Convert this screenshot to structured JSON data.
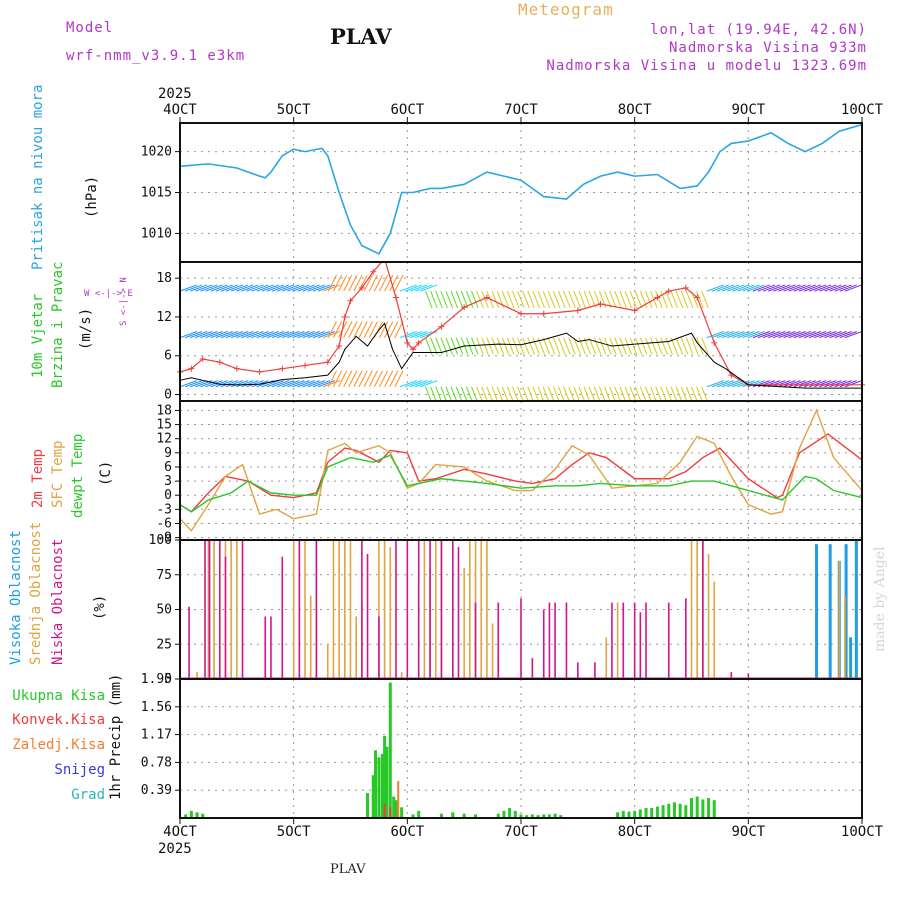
{
  "header": {
    "model_label": "Model",
    "model_name": "wrf-nmm_v3.9.1  e3km",
    "station": "PLAV",
    "meteogram": "Meteogram",
    "lonlat": "lon,lat (19.94E, 42.6N)",
    "altitude": "Nadmorska Visina 933m",
    "model_altitude": "Nadmorska Visina u modelu 1323.69m"
  },
  "time_axis": {
    "year": "2025",
    "ticks": [
      "4OCT",
      "5OCT",
      "6OCT",
      "7OCT",
      "8OCT",
      "9OCT",
      "10OCT"
    ]
  },
  "panel_labels": {
    "pressure": {
      "name": "Pritisak na nivou mora",
      "unit": "(hPa)"
    },
    "wind": {
      "name1": "10m Vjetar",
      "name2": "Brzina i Pravac",
      "unit": "(m/s)",
      "compass": "W <-|-> E",
      "compass_v": "S <-|-> N"
    },
    "temp": {
      "name1": "2m Temp",
      "name2": "SFC Temp",
      "name3": "dewpt Temp",
      "unit": "(C)"
    },
    "cloud": {
      "name1": "Visoka Oblacnost",
      "name2": "Srednja Oblacnost",
      "name3": "Niska Oblacnost",
      "unit": "(%)"
    },
    "precip": {
      "unit": "1hr Precip (mm)",
      "legend": [
        "Ukupna Kisa",
        "Konvek.Kisa",
        "Zaledj.Kisa",
        "Snijeg",
        "Grad"
      ]
    }
  },
  "footer": {
    "station": "PLAV",
    "watermark": "made by Angel"
  },
  "colors": {
    "pressure": "#2aa5e6",
    "temp2m": "#f03c3c",
    "sfc": "#e0a440",
    "dewpt": "#28c828",
    "high": "#1f9fe0",
    "mid": "#e0a440",
    "low": "#d0158c",
    "rain": "#28c828",
    "conv": "#f03c3c",
    "frz": "#f08030",
    "snow": "#3838e8",
    "hail": "#28b8b8",
    "windline": "#000000",
    "gust": "#f03c3c"
  },
  "chart_data": [
    {
      "type": "line",
      "title": "Pritisak na nivou mora",
      "ylabel": "(hPa)",
      "yticks": [
        1010,
        1015,
        1020
      ],
      "ylim": [
        1006.5,
        1023.5
      ],
      "x_days": [
        0,
        0.25,
        0.5,
        0.7,
        0.75,
        0.8,
        0.9,
        1.0,
        1.1,
        1.25,
        1.3,
        1.4,
        1.5,
        1.6,
        1.75,
        1.85,
        1.95,
        2.05,
        2.2,
        2.3,
        2.5,
        2.7,
        2.85,
        3.0,
        3.2,
        3.4,
        3.55,
        3.7,
        3.85,
        4.0,
        4.2,
        4.4,
        4.55,
        4.65,
        4.75,
        4.85,
        5.0,
        5.2,
        5.35,
        5.5,
        5.65,
        5.8,
        6.0
      ],
      "values": [
        1018.2,
        1018.5,
        1018,
        1017,
        1016.8,
        1017.5,
        1019.5,
        1020.3,
        1020,
        1020.4,
        1019.5,
        1015,
        1011,
        1008.5,
        1007.5,
        1010,
        1015,
        1015,
        1015.5,
        1015.5,
        1016,
        1017.5,
        1017,
        1016.5,
        1014.5,
        1014.2,
        1016,
        1017,
        1017.5,
        1017,
        1017.2,
        1015.5,
        1015.8,
        1017.5,
        1020,
        1021,
        1021.3,
        1022.3,
        1021,
        1020,
        1021,
        1022.5,
        1023.3
      ]
    },
    {
      "type": "line",
      "title": "10m Vjetar Brzina i Pravac",
      "ylabel": "(m/s)",
      "yticks": [
        0,
        6,
        12,
        18
      ],
      "ylim": [
        -1,
        20.5
      ],
      "series": [
        {
          "name": "wind speed",
          "x_days": [
            0,
            0.1,
            0.2,
            0.35,
            0.5,
            0.7,
            0.9,
            1.1,
            1.3,
            1.4,
            1.45,
            1.5,
            1.55,
            1.65,
            1.75,
            1.8,
            1.87,
            1.95,
            2.05,
            2.3,
            2.5,
            2.8,
            3.0,
            3.2,
            3.4,
            3.5,
            3.6,
            3.8,
            4.0,
            4.3,
            4.5,
            4.55,
            4.7,
            4.8,
            5.0,
            5.5,
            6.0
          ],
          "values": [
            2.2,
            2.6,
            2.2,
            1.6,
            1.5,
            1.6,
            2.3,
            2.6,
            3.0,
            5.0,
            7.0,
            8.0,
            9.0,
            7.5,
            10.0,
            11.0,
            7.0,
            4.0,
            6.5,
            6.5,
            7.5,
            7.8,
            7.7,
            8.5,
            9.5,
            8.2,
            8.5,
            7.5,
            7.8,
            8.2,
            9.5,
            8.0,
            5.0,
            4.0,
            1.5,
            1.0,
            1.0
          ]
        },
        {
          "name": "gust",
          "x_days": [
            0,
            0.1,
            0.2,
            0.35,
            0.5,
            0.7,
            0.9,
            1.1,
            1.3,
            1.4,
            1.45,
            1.5,
            1.6,
            1.7,
            1.8,
            1.9,
            2.0,
            2.05,
            2.1,
            2.3,
            2.5,
            2.7,
            3.0,
            3.2,
            3.5,
            3.7,
            4.0,
            4.2,
            4.3,
            4.45,
            4.55,
            4.7,
            4.85,
            5.0,
            5.5,
            6.0
          ],
          "values": [
            3.5,
            4.0,
            5.5,
            5.0,
            4.0,
            3.5,
            4.0,
            4.5,
            5.0,
            7.5,
            12.0,
            14.5,
            16.5,
            19.0,
            21.0,
            15.0,
            8.0,
            7.0,
            8.0,
            10.5,
            13.5,
            15.0,
            12.5,
            12.5,
            13.0,
            14.0,
            13.0,
            15.0,
            16.0,
            16.5,
            15.0,
            8.0,
            3.0,
            1.5,
            1.5,
            1.5
          ]
        }
      ]
    },
    {
      "type": "line",
      "title": "Temperature",
      "ylabel": "(C)",
      "yticks": [
        -9,
        -6,
        -3,
        0,
        3,
        6,
        9,
        12,
        15,
        18
      ],
      "ylim": [
        -9.5,
        20
      ],
      "series": [
        {
          "name": "2m Temp",
          "x_days": [
            0,
            0.1,
            0.25,
            0.4,
            0.6,
            0.8,
            1.0,
            1.2,
            1.3,
            1.45,
            1.55,
            1.75,
            1.85,
            2.0,
            2.1,
            2.25,
            2.5,
            2.7,
            2.95,
            3.1,
            3.3,
            3.45,
            3.6,
            3.75,
            4.0,
            4.3,
            4.45,
            4.6,
            4.75,
            5.0,
            5.25,
            5.3,
            5.45,
            5.7,
            6.0
          ],
          "values": [
            -2.0,
            -3.5,
            0.5,
            4.0,
            3.0,
            0.0,
            -0.5,
            0.5,
            7.0,
            10.0,
            9.5,
            7.0,
            9.5,
            9.0,
            3.0,
            3.5,
            5.5,
            4.5,
            3.0,
            2.5,
            3.5,
            6.5,
            9.0,
            8.0,
            3.5,
            3.5,
            5.0,
            8.0,
            10.0,
            3.5,
            -0.5,
            0.0,
            9.0,
            13.0,
            7.5
          ]
        },
        {
          "name": "SFC Temp",
          "x_days": [
            0,
            0.1,
            0.25,
            0.4,
            0.55,
            0.7,
            0.85,
            1.0,
            1.2,
            1.3,
            1.45,
            1.55,
            1.75,
            1.85,
            2.0,
            2.1,
            2.25,
            2.5,
            2.7,
            2.95,
            3.1,
            3.3,
            3.45,
            3.6,
            3.8,
            4.0,
            4.2,
            4.4,
            4.55,
            4.7,
            4.85,
            5.0,
            5.2,
            5.3,
            5.45,
            5.6,
            5.75,
            6.0
          ],
          "values": [
            -5.0,
            -7.5,
            -2.0,
            4.0,
            6.5,
            -4.0,
            -3.0,
            -5.0,
            -4.0,
            9.5,
            11.0,
            9.0,
            10.5,
            9.0,
            1.5,
            2.5,
            6.5,
            6.0,
            3.0,
            1.0,
            1.0,
            5.5,
            10.5,
            8.5,
            1.5,
            2.0,
            2.5,
            7.0,
            12.5,
            11.0,
            4.0,
            -2.0,
            -4.0,
            -3.5,
            10.0,
            18.0,
            8.0,
            1.0
          ]
        },
        {
          "name": "dewpt Temp",
          "x_days": [
            0,
            0.1,
            0.25,
            0.45,
            0.6,
            0.8,
            1.0,
            1.2,
            1.3,
            1.5,
            1.7,
            1.85,
            2.0,
            2.1,
            2.3,
            2.5,
            2.7,
            3.0,
            3.3,
            3.5,
            3.7,
            4.0,
            4.3,
            4.5,
            4.7,
            5.0,
            5.3,
            5.5,
            5.6,
            5.75,
            6.0
          ],
          "values": [
            -2.0,
            -3.5,
            -1.0,
            0.5,
            3.0,
            0.5,
            0.0,
            0.0,
            6.0,
            8.0,
            7.0,
            8.5,
            2.0,
            2.5,
            3.5,
            3.0,
            2.5,
            1.5,
            2.0,
            2.0,
            2.5,
            2.0,
            2.0,
            3.0,
            3.0,
            1.0,
            -1.0,
            4.0,
            3.5,
            1.0,
            -0.5
          ]
        }
      ]
    },
    {
      "type": "bar",
      "title": "Oblacnost",
      "ylabel": "(%)",
      "yticks": [
        0,
        25,
        50,
        75,
        100
      ],
      "ylim": [
        0,
        100
      ],
      "series": [
        {
          "name": "Visoka Oblacnost",
          "x_days": [
            5.6,
            5.72,
            5.8,
            5.86,
            5.9,
            5.95
          ],
          "values": [
            97,
            97,
            85,
            97,
            30,
            100
          ]
        },
        {
          "name": "Srednja Oblacnost",
          "x_days": [
            0.15,
            0.25,
            0.3,
            0.4,
            0.45,
            0.5,
            1.0,
            1.05,
            1.1,
            1.15,
            1.2,
            1.3,
            1.35,
            1.4,
            1.45,
            1.5,
            1.55,
            1.6,
            1.75,
            1.8,
            1.85,
            1.95,
            2.1,
            2.15,
            2.2,
            2.25,
            2.3,
            2.4,
            2.5,
            2.55,
            2.6,
            2.65,
            2.7,
            2.75,
            2.8,
            3.2,
            3.5,
            3.75,
            3.85,
            4.05,
            4.5,
            4.55,
            4.6,
            4.65,
            4.7,
            5.8,
            5.85
          ],
          "values": [
            5,
            100,
            100,
            100,
            100,
            100,
            100,
            100,
            100,
            60,
            100,
            25,
            100,
            100,
            100,
            100,
            45,
            55,
            100,
            100,
            95,
            5,
            70,
            100,
            80,
            100,
            100,
            10,
            80,
            100,
            100,
            100,
            100,
            40,
            15,
            10,
            5,
            30,
            55,
            10,
            100,
            100,
            100,
            90,
            70,
            85,
            60
          ]
        },
        {
          "name": "Niska Oblacnost",
          "x_days": [
            0.08,
            0.22,
            0.26,
            0.35,
            0.4,
            0.55,
            0.75,
            0.8,
            0.9,
            1.05,
            1.2,
            1.6,
            1.65,
            1.75,
            1.9,
            2.0,
            2.1,
            2.2,
            2.3,
            2.4,
            2.45,
            2.6,
            2.8,
            3.0,
            3.1,
            3.2,
            3.25,
            3.3,
            3.4,
            3.5,
            3.65,
            3.8,
            3.9,
            4.0,
            4.05,
            4.1,
            4.3,
            4.45,
            4.6,
            4.85,
            5.0
          ],
          "values": [
            52,
            100,
            100,
            100,
            88,
            100,
            45,
            45,
            88,
            100,
            100,
            100,
            90,
            45,
            100,
            100,
            100,
            100,
            100,
            100,
            95,
            55,
            55,
            58,
            15,
            50,
            55,
            55,
            55,
            12,
            12,
            55,
            55,
            55,
            48,
            55,
            55,
            58,
            100,
            5,
            4
          ]
        }
      ]
    },
    {
      "type": "bar",
      "title": "1hr Precip",
      "ylabel": "1hr Precip (mm)",
      "yticks": [
        0.39,
        0.78,
        1.17,
        1.56,
        1.95
      ],
      "ylim": [
        0,
        1.95
      ],
      "series": [
        {
          "name": "Ukupna Kisa",
          "x_days": [
            0.05,
            0.1,
            0.15,
            0.2,
            1.65,
            1.7,
            1.72,
            1.75,
            1.78,
            1.8,
            1.82,
            1.85,
            1.88,
            1.9,
            1.95,
            2.05,
            2.1,
            2.3,
            2.4,
            2.5,
            2.6,
            2.8,
            2.85,
            2.9,
            2.95,
            3.0,
            3.05,
            3.1,
            3.15,
            3.2,
            3.25,
            3.3,
            3.35,
            3.85,
            3.9,
            3.95,
            4.0,
            4.05,
            4.1,
            4.15,
            4.2,
            4.25,
            4.3,
            4.35,
            4.4,
            4.45,
            4.5,
            4.55,
            4.6,
            4.65,
            4.7
          ],
          "values": [
            0.05,
            0.1,
            0.08,
            0.06,
            0.35,
            0.6,
            0.95,
            0.85,
            0.9,
            1.15,
            1.0,
            1.9,
            0.3,
            0.25,
            0.15,
            0.05,
            0.1,
            0.06,
            0.08,
            0.06,
            0.05,
            0.06,
            0.1,
            0.14,
            0.1,
            0.05,
            0.04,
            0.05,
            0.04,
            0.05,
            0.05,
            0.06,
            0.04,
            0.08,
            0.1,
            0.09,
            0.1,
            0.12,
            0.14,
            0.14,
            0.16,
            0.18,
            0.2,
            0.22,
            0.2,
            0.18,
            0.28,
            0.3,
            0.26,
            0.28,
            0.25
          ]
        },
        {
          "name": "Konvek.Kisa",
          "x_days": [
            1.8,
            1.85
          ],
          "values": [
            0.2,
            0.15
          ]
        },
        {
          "name": "Zaledj.Kisa",
          "x_days": [
            1.92
          ],
          "values": [
            0.52
          ]
        }
      ]
    }
  ]
}
